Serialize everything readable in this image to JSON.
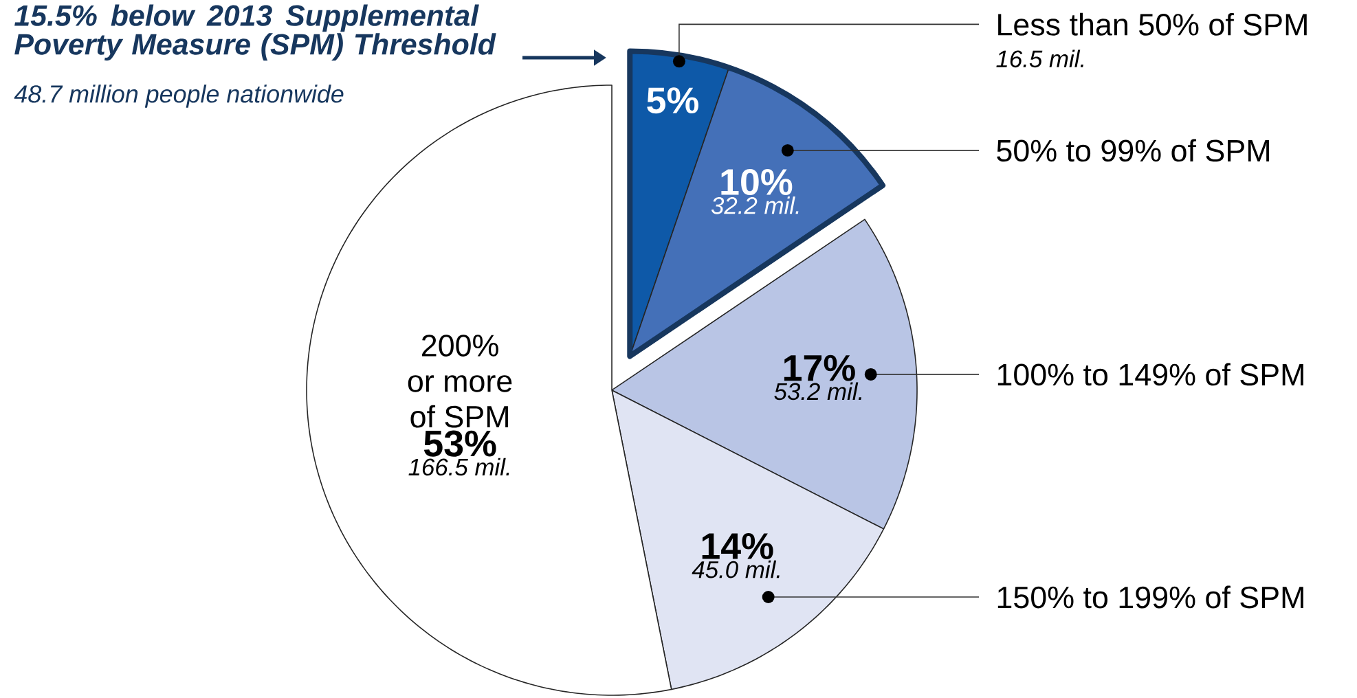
{
  "chart_data": {
    "type": "pie",
    "title": "15.5% below 2013 Supplemental Poverty Measure (SPM) Threshold",
    "subtitle": "48.7 million people nationwide",
    "categories": [
      "Less than 50% of SPM",
      "50% to 99% of SPM",
      "100% to 149% of SPM",
      "150% to 199% of SPM",
      "200% or more of SPM"
    ],
    "values": [
      16.5,
      32.2,
      53.2,
      45.0,
      166.5
    ],
    "value_labels": [
      "16.5 mil.",
      "32.2 mil.",
      "53.2 mil.",
      "45.0 mil.",
      "166.5 mil."
    ],
    "colors": [
      "#0e59a8",
      "#4470b8",
      "#b9c5e5",
      "#e0e4f3",
      "#ffffff"
    ],
    "annotations": [
      "5%",
      "10%",
      "17%",
      "14%",
      "53%"
    ]
  }
}
